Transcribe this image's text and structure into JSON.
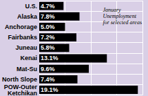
{
  "chart_data": {
    "type": "bar",
    "orientation": "horizontal",
    "title": "January\nUnemployment\nfor selected areas",
    "categories": [
      "U.S.",
      "Alaska",
      "Anchorage",
      "Fairbanks",
      "Juneau",
      "Kenai",
      "Mat-Su",
      "North Slope",
      "POW-Outer\nKetchikan"
    ],
    "values": [
      4.7,
      7.8,
      5.0,
      7.2,
      5.8,
      13.1,
      9.6,
      7.4,
      19.1
    ],
    "value_labels": [
      "4.7%",
      "7.8%",
      "5.0%",
      "7.2%",
      "5.8%",
      "13.1%",
      "9.6%",
      "7.4%",
      "19.1%"
    ],
    "data_labels": true,
    "color": "#000000",
    "xlim": [
      0,
      20
    ],
    "xticks": [
      0,
      5,
      10,
      15,
      20
    ],
    "tick_labels": "y",
    "grid": true
  }
}
